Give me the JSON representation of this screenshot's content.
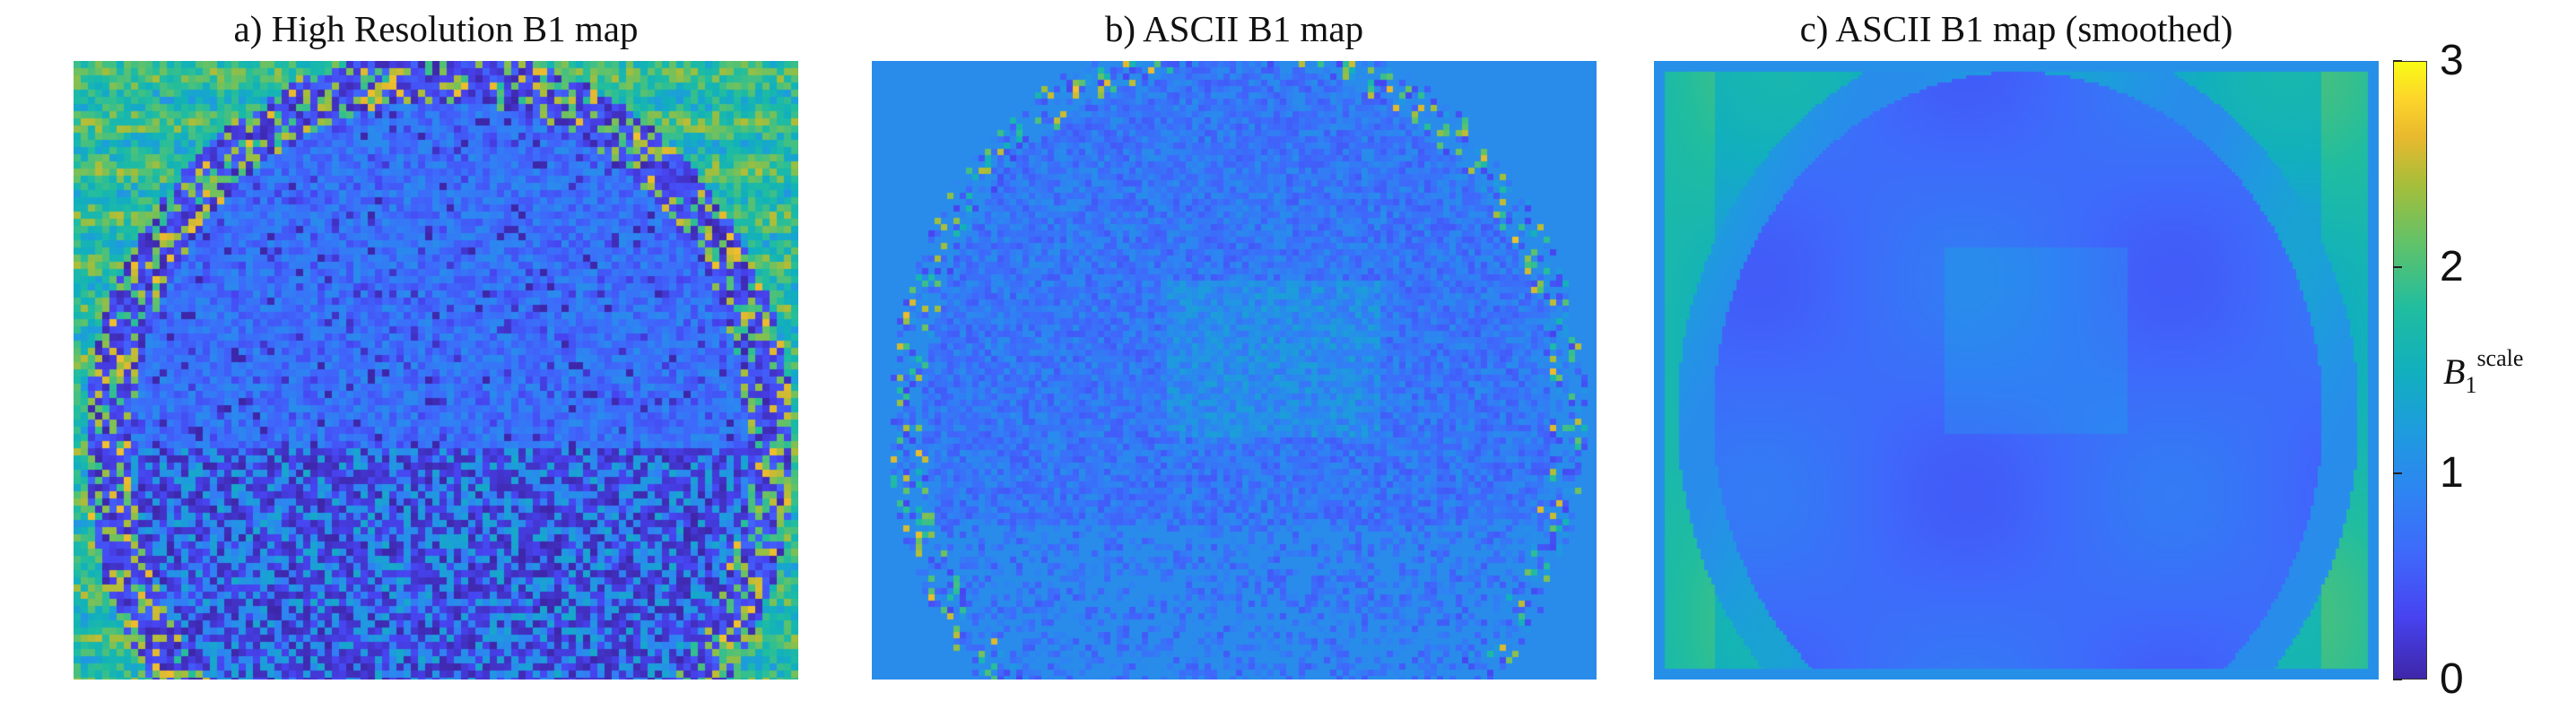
{
  "chart_data": [
    {
      "type": "heatmap",
      "title": "a) High Resolution B1 map",
      "colorscale_range": [
        0,
        3
      ]
    },
    {
      "type": "heatmap",
      "title": "b) ASCII B1 map",
      "colorscale_range": [
        0,
        3
      ]
    },
    {
      "type": "heatmap",
      "title": "c) ASCII B1 map (smoothed)",
      "colorscale_range": [
        0,
        3
      ]
    }
  ],
  "colorbar": {
    "label_main": "B",
    "label_sub": "1",
    "label_sup": "scale",
    "ticks": [
      "0",
      "1",
      "2",
      "3"
    ],
    "tick_values": [
      0,
      1,
      2,
      3
    ],
    "colormap": "parula"
  }
}
